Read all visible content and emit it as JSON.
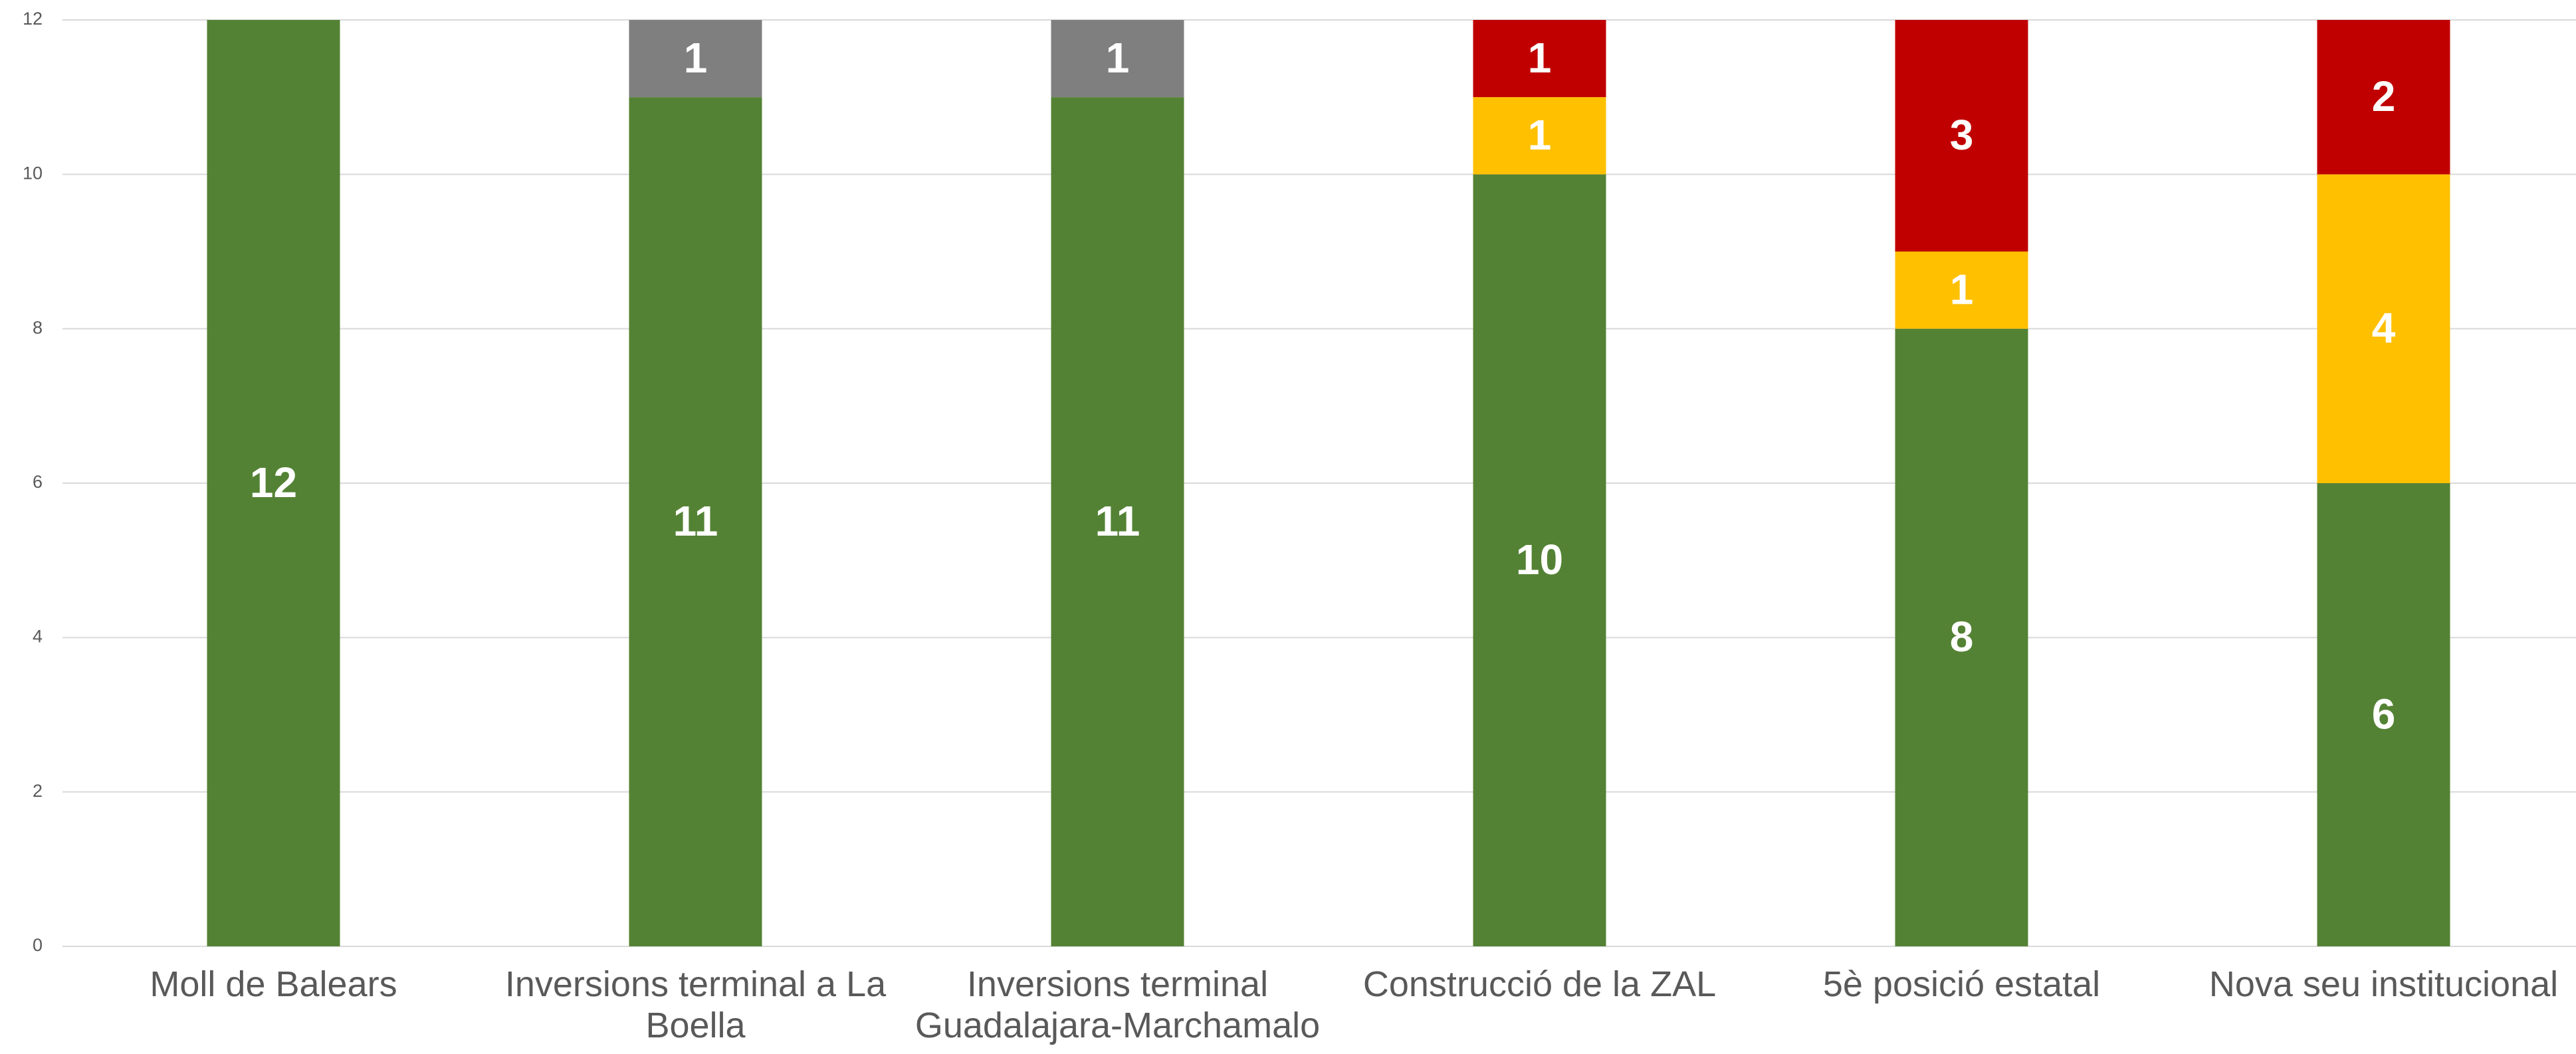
{
  "chart_data": {
    "type": "stacked_bar",
    "categories": [
      "Moll de Balears",
      "Inversions terminal a La Boella",
      "Inversions terminal Guadalajara-Marchamalo",
      "Construcció de la ZAL",
      "5è posició estatal",
      "Nova seu institucional"
    ],
    "series": [
      {
        "color": "#548235",
        "values": [
          12,
          11,
          11,
          10,
          8,
          6
        ]
      },
      {
        "color": "#7f7f7f",
        "values": [
          null,
          1,
          1,
          null,
          null,
          null
        ]
      },
      {
        "color": "#ffc000",
        "values": [
          null,
          null,
          null,
          1,
          1,
          4
        ]
      },
      {
        "color": "#c00000",
        "values": [
          null,
          null,
          null,
          1,
          3,
          2
        ]
      }
    ],
    "ylim": [
      0,
      12
    ],
    "yticks": [
      0,
      2,
      4,
      6,
      8,
      10,
      12
    ],
    "grid": true
  }
}
